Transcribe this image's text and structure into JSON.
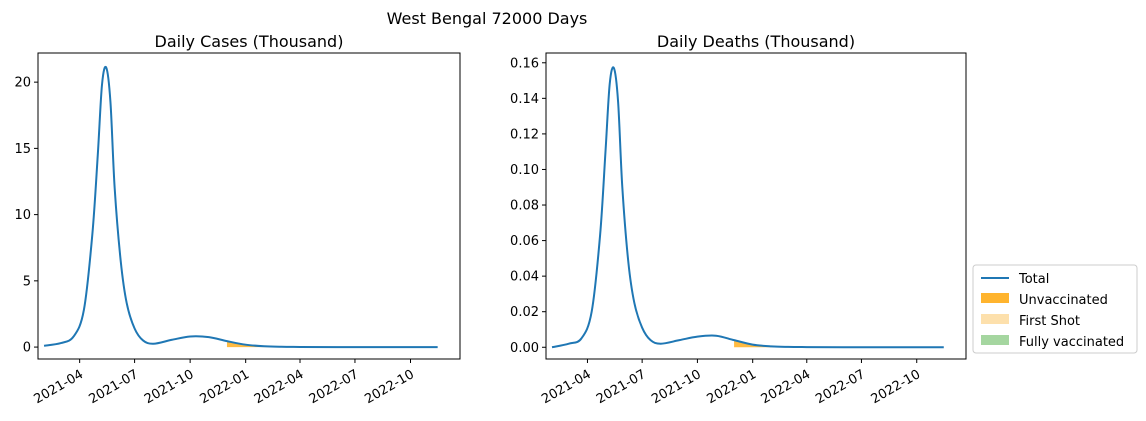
{
  "figure": {
    "suptitle": "West Bengal 72000 Days"
  },
  "colors": {
    "total": "#1f77b4",
    "unvaccinated": "#ffb42e",
    "first_shot": "#fde0ac",
    "fully_vaccinated": "#a5d6a0"
  },
  "legend": {
    "placement": "right-bottom",
    "entries": [
      "Total",
      "Unvaccinated",
      "First Shot",
      "Fully vaccinated"
    ]
  },
  "chart_data": [
    {
      "type": "area",
      "title": "Daily Cases (Thousand)",
      "xlabel": "",
      "ylabel": "",
      "x_ticks": [
        "2021-04",
        "2021-07",
        "2021-10",
        "2022-01",
        "2022-04",
        "2022-07",
        "2022-10"
      ],
      "y_ticks": [
        "0",
        "5",
        "10",
        "15",
        "20"
      ],
      "ylim": [
        -0.9,
        22.2
      ],
      "xlim": [
        "2021-01-22",
        "2022-12-22"
      ],
      "series": [
        {
          "name": "Total",
          "x": [
            "2021-02-01",
            "2021-03-01",
            "2021-03-22",
            "2021-04-08",
            "2021-04-22",
            "2021-05-01",
            "2021-05-08",
            "2021-05-15",
            "2021-05-22",
            "2021-05-29",
            "2021-06-08",
            "2021-06-18",
            "2021-07-01",
            "2021-07-15",
            "2021-08-01",
            "2021-09-01",
            "2021-10-01",
            "2021-11-01",
            "2021-12-01",
            "2022-01-01",
            "2022-02-01",
            "2022-03-01",
            "2022-04-01",
            "2022-06-01",
            "2022-09-01",
            "2022-11-15"
          ],
          "values": [
            0.1,
            0.3,
            0.8,
            2.8,
            8.5,
            14.5,
            19.8,
            21.1,
            18.5,
            12.0,
            6.5,
            3.3,
            1.4,
            0.5,
            0.25,
            0.55,
            0.8,
            0.75,
            0.45,
            0.18,
            0.06,
            0.02,
            0.01,
            0.0,
            0.0,
            0.0
          ]
        },
        {
          "name": "Unvaccinated",
          "x": [
            "2021-12-01",
            "2022-01-01",
            "2022-02-01",
            "2022-03-01",
            "2022-04-01"
          ],
          "values": [
            0.45,
            0.18,
            0.06,
            0.02,
            0.01
          ]
        }
      ]
    },
    {
      "type": "area",
      "title": "Daily Deaths (Thousand)",
      "xlabel": "",
      "ylabel": "",
      "x_ticks": [
        "2021-04",
        "2021-07",
        "2021-10",
        "2022-01",
        "2022-04",
        "2022-07",
        "2022-10"
      ],
      "y_ticks": [
        "0.00",
        "0.02",
        "0.04",
        "0.06",
        "0.08",
        "0.10",
        "0.12",
        "0.14",
        "0.16"
      ],
      "ylim": [
        -0.0066,
        0.1655
      ],
      "xlim": [
        "2021-01-22",
        "2022-12-22"
      ],
      "series": [
        {
          "name": "Total",
          "x": [
            "2021-02-01",
            "2021-03-01",
            "2021-03-22",
            "2021-04-08",
            "2021-04-22",
            "2021-05-01",
            "2021-05-08",
            "2021-05-15",
            "2021-05-22",
            "2021-05-29",
            "2021-06-08",
            "2021-06-18",
            "2021-07-01",
            "2021-07-15",
            "2021-08-01",
            "2021-09-01",
            "2021-10-01",
            "2021-11-01",
            "2021-12-01",
            "2022-01-01",
            "2022-02-01",
            "2022-03-01",
            "2022-04-01",
            "2022-06-01",
            "2022-09-01",
            "2022-11-15"
          ],
          "values": [
            0.0,
            0.002,
            0.005,
            0.02,
            0.063,
            0.11,
            0.148,
            0.157,
            0.138,
            0.09,
            0.048,
            0.025,
            0.011,
            0.004,
            0.002,
            0.004,
            0.006,
            0.0065,
            0.004,
            0.0015,
            0.0005,
            0.0002,
            0.0001,
            0.0,
            0.0,
            0.0
          ]
        },
        {
          "name": "Unvaccinated",
          "x": [
            "2021-12-01",
            "2022-01-01",
            "2022-02-01",
            "2022-03-01",
            "2022-04-01"
          ],
          "values": [
            0.004,
            0.0015,
            0.0005,
            0.0002,
            0.0001
          ]
        }
      ]
    }
  ]
}
